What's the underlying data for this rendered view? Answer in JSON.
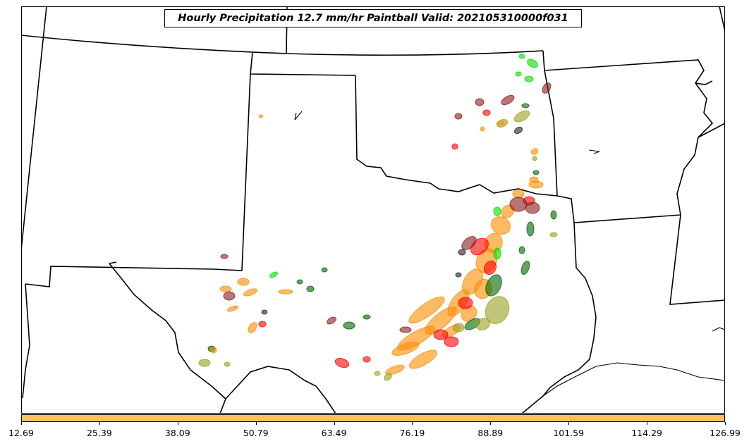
{
  "title": "Hourly Precipitation 12.7 mm/hr Paintball Valid: 202105310000f031",
  "colorbar": {
    "color": "#ffc060",
    "ticks": [
      "12.69",
      "25.39",
      "38.09",
      "50.79",
      "63.49",
      "76.19",
      "88.89",
      "101.59",
      "114.29",
      "126.99"
    ]
  },
  "paintball_colors": [
    "#ff8c00",
    "#ff0000",
    "#8b1a1a",
    "#006400",
    "#9aa01e",
    "#00dd00",
    "#222222"
  ]
}
